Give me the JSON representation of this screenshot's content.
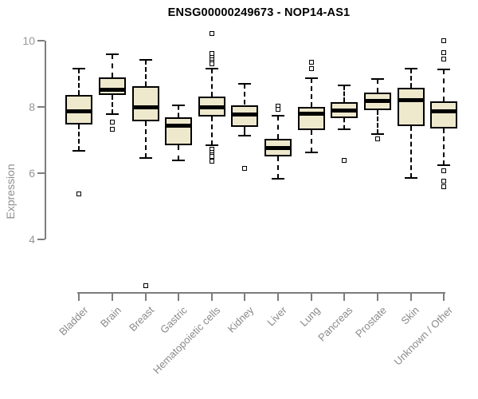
{
  "title": "ENSG00000249673 - NOP14-AS1",
  "y_axis": {
    "label": "Expression",
    "ticks": [
      "4",
      "6",
      "8",
      "10"
    ]
  },
  "style": {
    "box_fill": "#EEE8CD",
    "box_border": "#000000",
    "median_color": "#000000",
    "axis_color": "#7d7d7d",
    "y_tick_text_color": "#969696",
    "x_label_text_color": "#8a8a8a",
    "title_color": "#000000",
    "background": "#ffffff"
  },
  "chart_data": {
    "type": "boxplot",
    "title": "ENSG00000249673 - NOP14-AS1",
    "xlabel": "",
    "ylabel": "Expression",
    "ylim": [
      4,
      10
    ],
    "yticks": [
      4,
      6,
      8,
      10
    ],
    "grid": false,
    "legend": "none",
    "categories": [
      "Bladder",
      "Brain",
      "Breast",
      "Gastric",
      "Hematopoietic cells",
      "Kidney",
      "Liver",
      "Lung",
      "Pancreas",
      "Prostate",
      "Skin",
      "Unknown / Other"
    ],
    "series": [
      {
        "name": "Bladder",
        "whisker_low": 6.67,
        "q1": 7.48,
        "median": 7.86,
        "q3": 8.36,
        "whisker_high": 9.16,
        "outliers": [
          5.38
        ]
      },
      {
        "name": "Brain",
        "whisker_low": 7.78,
        "q1": 8.35,
        "median": 8.52,
        "q3": 8.88,
        "whisker_high": 9.6,
        "outliers": [
          7.55,
          7.33
        ]
      },
      {
        "name": "Breast",
        "whisker_low": 6.45,
        "q1": 7.57,
        "median": 8.0,
        "q3": 8.62,
        "whisker_high": 9.42,
        "outliers": [
          2.61
        ]
      },
      {
        "name": "Gastric",
        "whisker_low": 6.38,
        "q1": 6.85,
        "median": 7.44,
        "q3": 7.69,
        "whisker_high": 8.04,
        "outliers": []
      },
      {
        "name": "Hematopoietic cells",
        "whisker_low": 6.85,
        "q1": 7.71,
        "median": 8.0,
        "q3": 8.31,
        "whisker_high": 9.16,
        "outliers": [
          10.22,
          9.61,
          9.49,
          9.42,
          9.36,
          9.3,
          6.72,
          6.63,
          6.56,
          6.5,
          6.37
        ]
      },
      {
        "name": "Kidney",
        "whisker_low": 7.13,
        "q1": 7.39,
        "median": 7.78,
        "q3": 8.06,
        "whisker_high": 8.7,
        "outliers": [
          6.14
        ]
      },
      {
        "name": "Liver",
        "whisker_low": 5.83,
        "q1": 6.51,
        "median": 6.77,
        "q3": 7.04,
        "whisker_high": 7.73,
        "outliers": [
          8.03,
          7.93
        ]
      },
      {
        "name": "Lung",
        "whisker_low": 6.63,
        "q1": 7.29,
        "median": 7.79,
        "q3": 7.99,
        "whisker_high": 8.86,
        "outliers": [
          9.36,
          9.16
        ]
      },
      {
        "name": "Pancreas",
        "whisker_low": 7.33,
        "q1": 7.67,
        "median": 7.9,
        "q3": 8.14,
        "whisker_high": 8.66,
        "outliers": [
          6.38
        ]
      },
      {
        "name": "Prostate",
        "whisker_low": 7.19,
        "q1": 7.91,
        "median": 8.17,
        "q3": 8.44,
        "whisker_high": 8.84,
        "outliers": [
          7.04
        ]
      },
      {
        "name": "Skin",
        "whisker_low": 5.86,
        "q1": 7.41,
        "median": 8.2,
        "q3": 8.58,
        "whisker_high": 9.16,
        "outliers": []
      },
      {
        "name": "Unknown / Other",
        "whisker_low": 6.23,
        "q1": 7.35,
        "median": 7.86,
        "q3": 8.18,
        "whisker_high": 9.13,
        "outliers": [
          10.0,
          9.65,
          9.45,
          6.07,
          5.77,
          5.58
        ]
      }
    ]
  }
}
